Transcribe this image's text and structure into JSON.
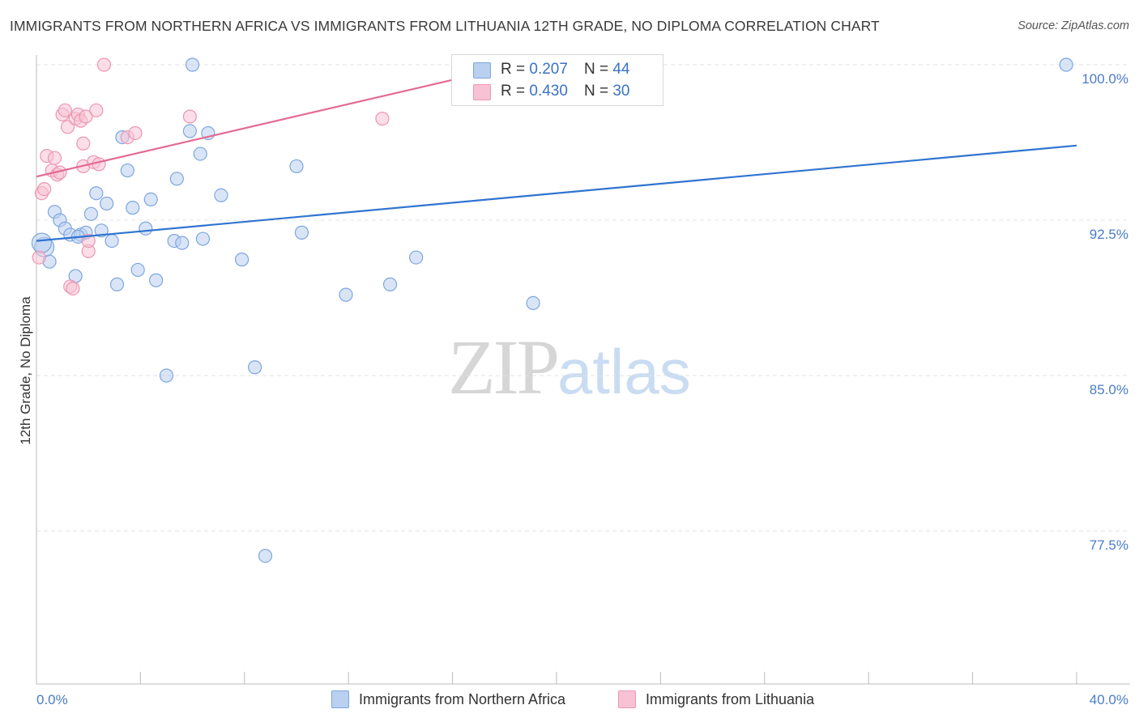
{
  "title": "IMMIGRANTS FROM NORTHERN AFRICA VS IMMIGRANTS FROM LITHUANIA 12TH GRADE, NO DIPLOMA CORRELATION CHART",
  "source": "Source: ZipAtlas.com",
  "watermark": {
    "zip": "ZIP",
    "atlas": "atlas"
  },
  "legend_top": {
    "rows": [
      {
        "r_label": "R =",
        "r_value": "0.207",
        "n_label": "N =",
        "n_value": "44"
      },
      {
        "r_label": "R =",
        "r_value": "0.430",
        "n_label": "N =",
        "n_value": "30"
      }
    ]
  },
  "colors": {
    "blue_fill": "#b9d0f0",
    "blue_stroke": "#7ea6de",
    "blue_line": "#2f74d0",
    "pink_fill": "#f7c3d4",
    "pink_stroke": "#ec96b2",
    "pink_line": "#e36a93",
    "grid": "#e3e3e3",
    "axis": "#bbbbbb",
    "tick_text": "#4a7cc7"
  },
  "chart_data": {
    "type": "scatter",
    "title": "IMMIGRANTS FROM NORTHERN AFRICA VS IMMIGRANTS FROM LITHUANIA 12TH GRADE, NO DIPLOMA CORRELATION CHART",
    "xlabel": "",
    "ylabel": "12th Grade, No Diploma",
    "xlim": [
      0,
      40
    ],
    "ylim": [
      70.0,
      100.8
    ],
    "x_tick_labels": [
      {
        "value": 0,
        "label": "0.0%"
      },
      {
        "value": 40,
        "label": "40.0%"
      }
    ],
    "y_tick_labels": [
      {
        "value": 100.0,
        "label": "100.0%"
      },
      {
        "value": 92.5,
        "label": "92.5%"
      },
      {
        "value": 85.0,
        "label": "85.0%"
      },
      {
        "value": 77.5,
        "label": "77.5%"
      }
    ],
    "grid": true,
    "legend_position": "bottom",
    "series": [
      {
        "name": "Immigrants from Northern Africa",
        "color": "#7ea6de",
        "regression": {
          "x": [
            0,
            40
          ],
          "y": [
            91.5,
            96.1
          ]
        },
        "points": [
          [
            0.3,
            91.2
          ],
          [
            0.5,
            90.5
          ],
          [
            0.7,
            92.9
          ],
          [
            0.9,
            92.5
          ],
          [
            1.1,
            92.1
          ],
          [
            1.3,
            91.8
          ],
          [
            1.5,
            89.8
          ],
          [
            1.7,
            91.8
          ],
          [
            1.9,
            91.9
          ],
          [
            2.1,
            92.8
          ],
          [
            2.3,
            93.8
          ],
          [
            2.5,
            92.0
          ],
          [
            2.7,
            93.3
          ],
          [
            2.9,
            91.5
          ],
          [
            3.1,
            89.4
          ],
          [
            3.3,
            96.5
          ],
          [
            3.5,
            94.9
          ],
          [
            3.7,
            93.1
          ],
          [
            3.9,
            90.1
          ],
          [
            4.2,
            92.1
          ],
          [
            4.4,
            93.5
          ],
          [
            4.6,
            89.6
          ],
          [
            5.0,
            85.0
          ],
          [
            5.3,
            91.5
          ],
          [
            5.4,
            94.5
          ],
          [
            5.6,
            91.4
          ],
          [
            5.9,
            96.8
          ],
          [
            6.0,
            100.0
          ],
          [
            6.3,
            95.7
          ],
          [
            6.4,
            91.6
          ],
          [
            6.6,
            96.7
          ],
          [
            7.1,
            93.7
          ],
          [
            7.9,
            90.6
          ],
          [
            8.4,
            85.4
          ],
          [
            8.8,
            76.3
          ],
          [
            10.0,
            95.1
          ],
          [
            10.2,
            91.9
          ],
          [
            11.9,
            88.9
          ],
          [
            13.6,
            89.4
          ],
          [
            14.6,
            90.7
          ],
          [
            19.1,
            88.5
          ],
          [
            39.6,
            100.0
          ],
          [
            0.2,
            91.4
          ],
          [
            1.6,
            91.7
          ]
        ]
      },
      {
        "name": "Immigrants from Lithuania",
        "color": "#ec96b2",
        "regression": {
          "x": [
            0,
            18.5
          ],
          "y": [
            94.6,
            100.0
          ]
        },
        "points": [
          [
            0.1,
            90.7
          ],
          [
            0.2,
            93.8
          ],
          [
            0.3,
            94.0
          ],
          [
            0.4,
            95.6
          ],
          [
            0.6,
            94.9
          ],
          [
            0.7,
            95.5
          ],
          [
            0.8,
            94.7
          ],
          [
            0.9,
            94.8
          ],
          [
            1.0,
            97.6
          ],
          [
            1.1,
            97.8
          ],
          [
            1.2,
            97.0
          ],
          [
            1.3,
            89.3
          ],
          [
            1.4,
            89.2
          ],
          [
            1.5,
            97.4
          ],
          [
            1.6,
            97.6
          ],
          [
            1.7,
            97.3
          ],
          [
            1.8,
            95.1
          ],
          [
            1.8,
            96.2
          ],
          [
            1.9,
            97.5
          ],
          [
            2.0,
            91.0
          ],
          [
            2.0,
            91.5
          ],
          [
            2.2,
            95.3
          ],
          [
            2.3,
            97.8
          ],
          [
            2.4,
            95.2
          ],
          [
            2.6,
            100.0
          ],
          [
            3.5,
            96.5
          ],
          [
            3.8,
            96.7
          ],
          [
            5.9,
            97.5
          ],
          [
            13.3,
            97.4
          ],
          [
            18.5,
            100.0
          ]
        ]
      }
    ]
  },
  "bottom_legend": [
    {
      "label": "Immigrants from Northern Africa"
    },
    {
      "label": "Immigrants from Lithuania"
    }
  ]
}
